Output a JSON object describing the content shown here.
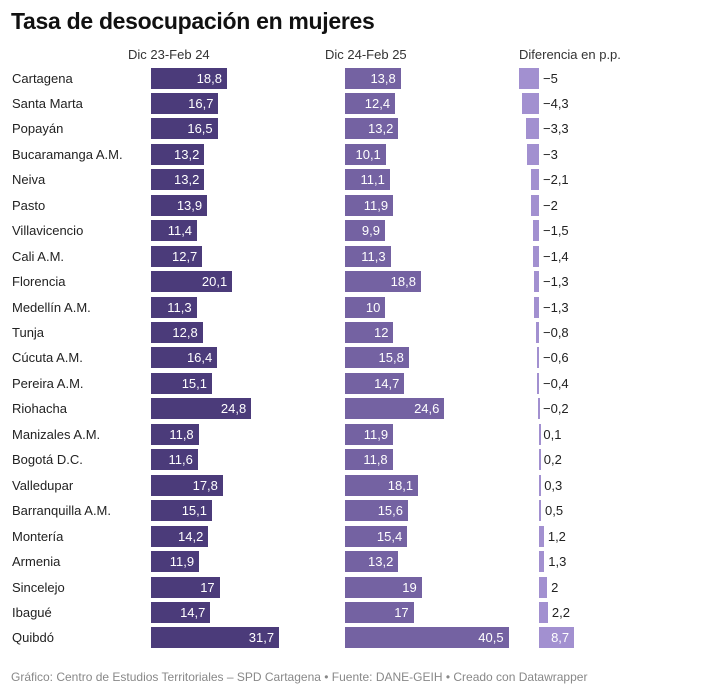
{
  "chart_data": {
    "type": "bar",
    "title": "Tasa de desocupación en mujeres",
    "columns": [
      "Dic 23-Feb 24",
      "Dic 24-Feb 25",
      "Diferencia en p.p."
    ],
    "categories": [
      "Cartagena",
      "Santa Marta",
      "Popayán",
      "Bucaramanga A.M.",
      "Neiva",
      "Pasto",
      "Villavicencio",
      "Cali A.M.",
      "Florencia",
      "Medellín A.M.",
      "Tunja",
      "Cúcuta A.M.",
      "Pereira A.M.",
      "Riohacha",
      "Manizales A.M.",
      "Bogotá D.C.",
      "Valledupar",
      "Barranquilla A.M.",
      "Montería",
      "Armenia",
      "Sincelejo",
      "Ibagué",
      "Quibdó"
    ],
    "series": [
      {
        "name": "Dic 23-Feb 24",
        "color": "#4b3b7a",
        "values": [
          18.8,
          16.7,
          16.5,
          13.2,
          13.2,
          13.9,
          11.4,
          12.7,
          20.1,
          11.3,
          12.8,
          16.4,
          15.1,
          24.8,
          11.8,
          11.6,
          17.8,
          15.1,
          14.2,
          11.9,
          17,
          14.7,
          31.7
        ]
      },
      {
        "name": "Dic 24-Feb 25",
        "color": "#7462a2",
        "values": [
          13.8,
          12.4,
          13.2,
          10.1,
          11.1,
          11.9,
          9.9,
          11.3,
          18.8,
          10,
          12,
          15.8,
          14.7,
          24.6,
          11.9,
          11.8,
          18.1,
          15.6,
          15.4,
          13.2,
          19,
          17,
          40.5
        ]
      },
      {
        "name": "Diferencia en p.p.",
        "color": "#a290d0",
        "values": [
          -5,
          -4.3,
          -3.3,
          -3,
          -2.1,
          -2,
          -1.5,
          -1.4,
          -1.3,
          -1.3,
          -0.8,
          -0.6,
          -0.4,
          -0.2,
          0.1,
          0.2,
          0.3,
          0.5,
          1.2,
          1.3,
          2,
          2.2,
          8.7
        ]
      }
    ],
    "decimal_separator": ",",
    "minus_sign": "−"
  },
  "footer": "Gráfico: Centro de Estudios Territoriales – SPD Cartagena • Fuente: DANE-GEIH • Creado con Datawrapper"
}
